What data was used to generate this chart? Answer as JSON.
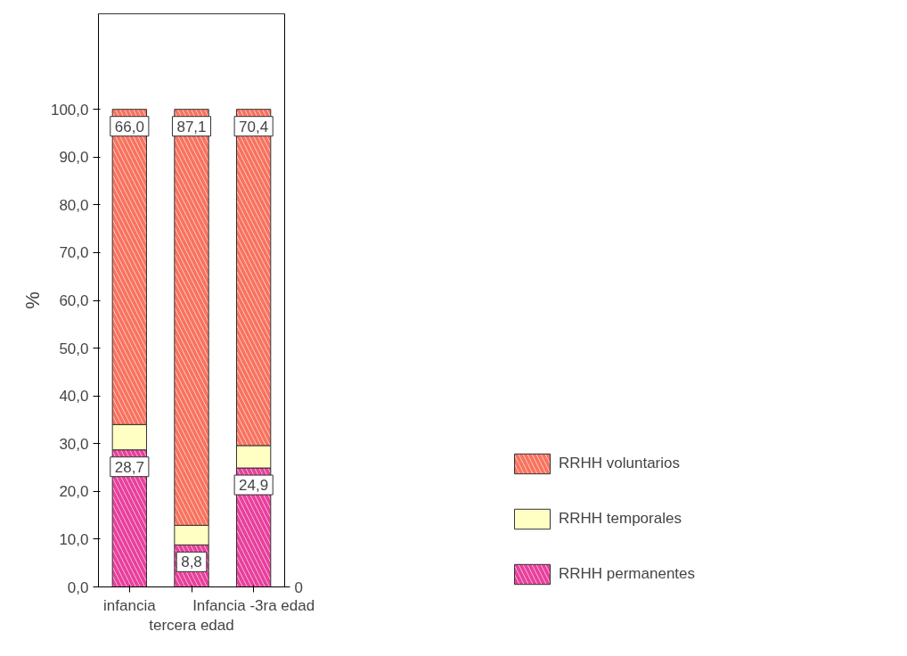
{
  "chart_data": {
    "type": "bar",
    "stacked": true,
    "ylabel": "%",
    "categories": [
      "infancia",
      "tercera edad",
      "Infancia -3ra edad"
    ],
    "series": [
      {
        "name": "RRHH permanentes",
        "color": "#e8409c",
        "values": [
          28.7,
          8.8,
          24.9
        ],
        "value_labels": [
          "28,7",
          "8,8",
          "24,9"
        ]
      },
      {
        "name": "RRHH temporales",
        "color": "#ffffc4",
        "values": [
          5.3,
          4.1,
          4.7
        ]
      },
      {
        "name": "RRHH voluntarios",
        "color": "#f8735f",
        "values": [
          66.0,
          87.1,
          70.4
        ],
        "value_labels": [
          "66,0",
          "87,1",
          "70,4"
        ]
      }
    ],
    "ylim": [
      0,
      120
    ],
    "yticks": [
      {
        "value": 0,
        "label": "0,0"
      },
      {
        "value": 10,
        "label": "10,0"
      },
      {
        "value": 20,
        "label": "20,0"
      },
      {
        "value": 30,
        "label": "30,0"
      },
      {
        "value": 40,
        "label": "40,0"
      },
      {
        "value": 50,
        "label": "50,0"
      },
      {
        "value": 60,
        "label": "60,0"
      },
      {
        "value": 70,
        "label": "70,0"
      },
      {
        "value": 80,
        "label": "80,0"
      },
      {
        "value": 90,
        "label": "90,0"
      },
      {
        "value": 100,
        "label": "100,0"
      }
    ],
    "legend": "right",
    "grid": false,
    "annotations": [
      "0"
    ]
  }
}
